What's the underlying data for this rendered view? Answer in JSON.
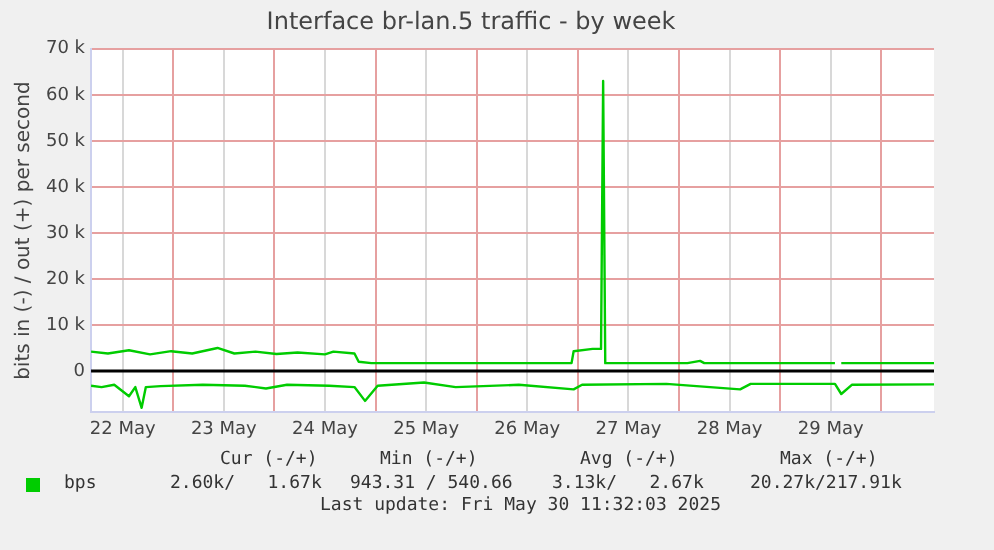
{
  "chart_data": {
    "type": "line",
    "title": "Interface br-lan.5 traffic - by week",
    "ylabel": "bits in (-) / out (+) per second",
    "xlim": [
      "2025-05-22T04:30",
      "2025-05-30T12:30"
    ],
    "xticks": [
      {
        "value": "2025-05-22T12:00",
        "label": "22 May"
      },
      {
        "value": "2025-05-23T00:00",
        "label": null
      },
      {
        "value": "2025-05-23T12:00",
        "label": "23 May"
      },
      {
        "value": "2025-05-24T00:00",
        "label": null
      },
      {
        "value": "2025-05-24T12:00",
        "label": "24 May"
      },
      {
        "value": "2025-05-25T00:00",
        "label": null
      },
      {
        "value": "2025-05-25T12:00",
        "label": "25 May"
      },
      {
        "value": "2025-05-26T00:00",
        "label": null
      },
      {
        "value": "2025-05-26T12:00",
        "label": "26 May"
      },
      {
        "value": "2025-05-27T00:00",
        "label": null
      },
      {
        "value": "2025-05-27T12:00",
        "label": "27 May"
      },
      {
        "value": "2025-05-28T00:00",
        "label": null
      },
      {
        "value": "2025-05-28T12:00",
        "label": "28 May"
      },
      {
        "value": "2025-05-29T00:00",
        "label": null
      },
      {
        "value": "2025-05-29T12:00",
        "label": "29 May"
      },
      {
        "value": "2025-05-30T00:00",
        "label": null
      }
    ],
    "ylim": [
      -9000,
      70000
    ],
    "yticks": [
      {
        "value": 0,
        "label": "0"
      },
      {
        "value": 10000,
        "label": "10 k"
      },
      {
        "value": 20000,
        "label": "20 k"
      },
      {
        "value": 30000,
        "label": "30 k"
      },
      {
        "value": 40000,
        "label": "40 k"
      },
      {
        "value": 50000,
        "label": "50 k"
      },
      {
        "value": 60000,
        "label": "60 k"
      },
      {
        "value": 70000,
        "label": "70 k"
      }
    ],
    "grid": true,
    "legend": "bottom left",
    "marker": "none",
    "line_style": "solid",
    "ref_lines": [
      {
        "axis": "y",
        "value": 0,
        "color": "#000000"
      }
    ],
    "series": [
      {
        "name": "bps",
        "color": "#00cc00",
        "x": [
          "2025-05-22T04:30",
          "2025-05-22T08:30",
          "2025-05-22T13:30",
          "2025-05-22T18:30",
          "2025-05-22T23:30",
          "2025-05-23T04:30",
          "2025-05-23T10:30",
          "2025-05-23T14:30",
          "2025-05-23T19:30",
          "2025-05-24T00:30",
          "2025-05-24T05:30",
          "2025-05-24T12:00",
          "2025-05-24T14:00",
          "2025-05-24T19:00",
          "2025-05-24T20:00",
          "2025-05-24T23:00",
          "2025-05-26T00:00",
          "2025-05-26T22:30",
          "2025-05-26T23:00",
          "2025-05-27T03:30",
          "2025-05-27T05:30",
          "2025-05-27T06:00",
          "2025-05-27T06:30",
          "2025-05-28T02:00",
          "2025-05-28T05:00",
          "2025-05-28T06:00",
          "2025-05-29T13:00",
          "2025-05-29T13:30",
          "2025-05-29T14:30",
          "2025-05-30T12:30"
        ],
        "values": [
          4200,
          3800,
          4500,
          3600,
          4300,
          3800,
          5000,
          3800,
          4200,
          3700,
          4000,
          3600,
          4200,
          3800,
          2000,
          1700,
          1700,
          1700,
          4300,
          4800,
          4800,
          63000,
          1700,
          1700,
          2200,
          1700,
          1700,
          null,
          1700,
          1700
        ]
      },
      {
        "color": "#00cc00",
        "x": [
          "2025-05-22T04:30",
          "2025-05-22T07:00",
          "2025-05-22T10:00",
          "2025-05-22T13:30",
          "2025-05-22T15:00",
          "2025-05-22T16:30",
          "2025-05-22T17:30",
          "2025-05-22T21:00",
          "2025-05-23T07:00",
          "2025-05-23T17:00",
          "2025-05-23T22:00",
          "2025-05-24T03:00",
          "2025-05-24T13:00",
          "2025-05-24T19:00",
          "2025-05-24T21:30",
          "2025-05-25T00:30",
          "2025-05-25T11:30",
          "2025-05-25T19:00",
          "2025-05-26T10:00",
          "2025-05-26T23:00",
          "2025-05-27T01:00",
          "2025-05-27T21:00",
          "2025-05-28T14:30",
          "2025-05-28T17:00",
          "2025-05-29T13:00",
          "2025-05-29T14:30",
          "2025-05-29T17:00",
          "2025-05-30T12:30"
        ],
        "values": [
          -3200,
          -3500,
          -3000,
          -5500,
          -3500,
          -8000,
          -3500,
          -3300,
          -3000,
          -3200,
          -3800,
          -3000,
          -3200,
          -3500,
          -6500,
          -3200,
          -2500,
          -3500,
          -3000,
          -4000,
          -3000,
          -2800,
          -4000,
          -2800,
          -2800,
          -5000,
          -3000,
          -2900
        ]
      }
    ],
    "annotations": [
      "Cur (-/+)",
      "Min (-/+)",
      "Avg (-/+)",
      "Max (-/+)",
      "2.60k/   1.67k",
      "943.31 / 540.66",
      "3.13k/   2.67k",
      "20.27k/217.91k",
      "Last update: Fri May 30 11:32:03 2025"
    ]
  }
}
